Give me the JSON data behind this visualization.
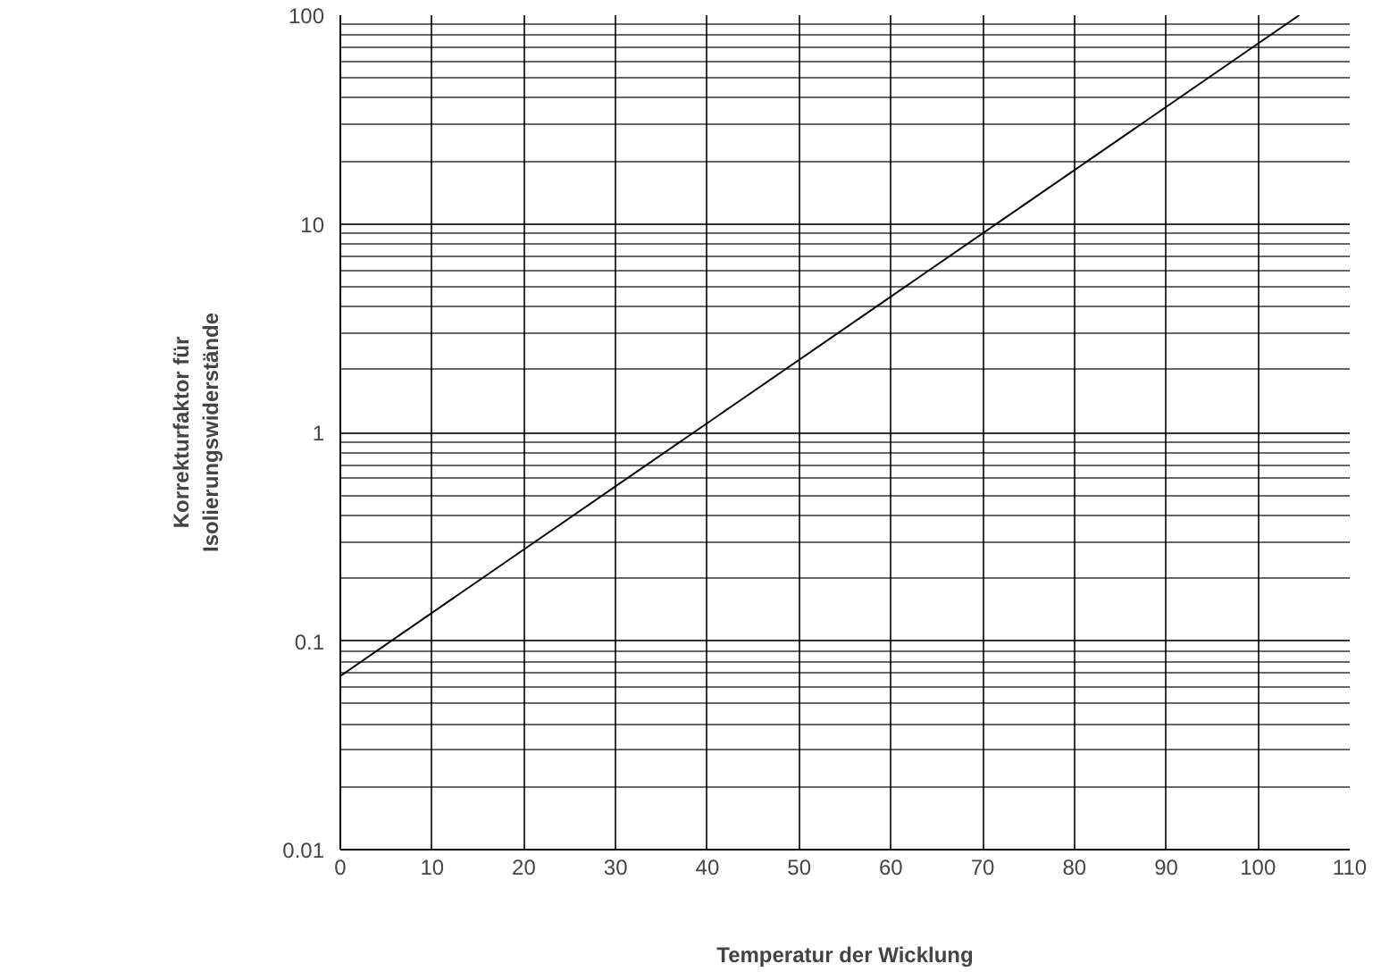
{
  "chart_data": {
    "type": "line",
    "xlabel": "Temperatur der Wicklung",
    "ylabel": "Korrekturfaktor für\nIsolierungswiderstände",
    "x": [
      0,
      104.5
    ],
    "series": [
      {
        "color": "#000000",
        "values": [
          0.068,
          100
        ]
      }
    ],
    "xlim": [
      0,
      110
    ],
    "ylim": [
      0.01,
      100
    ],
    "xticks": [
      0,
      10,
      20,
      30,
      40,
      50,
      60,
      70,
      80,
      90,
      100,
      110
    ],
    "yticks": [
      0.01,
      0.1,
      1,
      10,
      100
    ],
    "log": "y",
    "grid": true,
    "marker": "none",
    "line_style": "solid"
  }
}
